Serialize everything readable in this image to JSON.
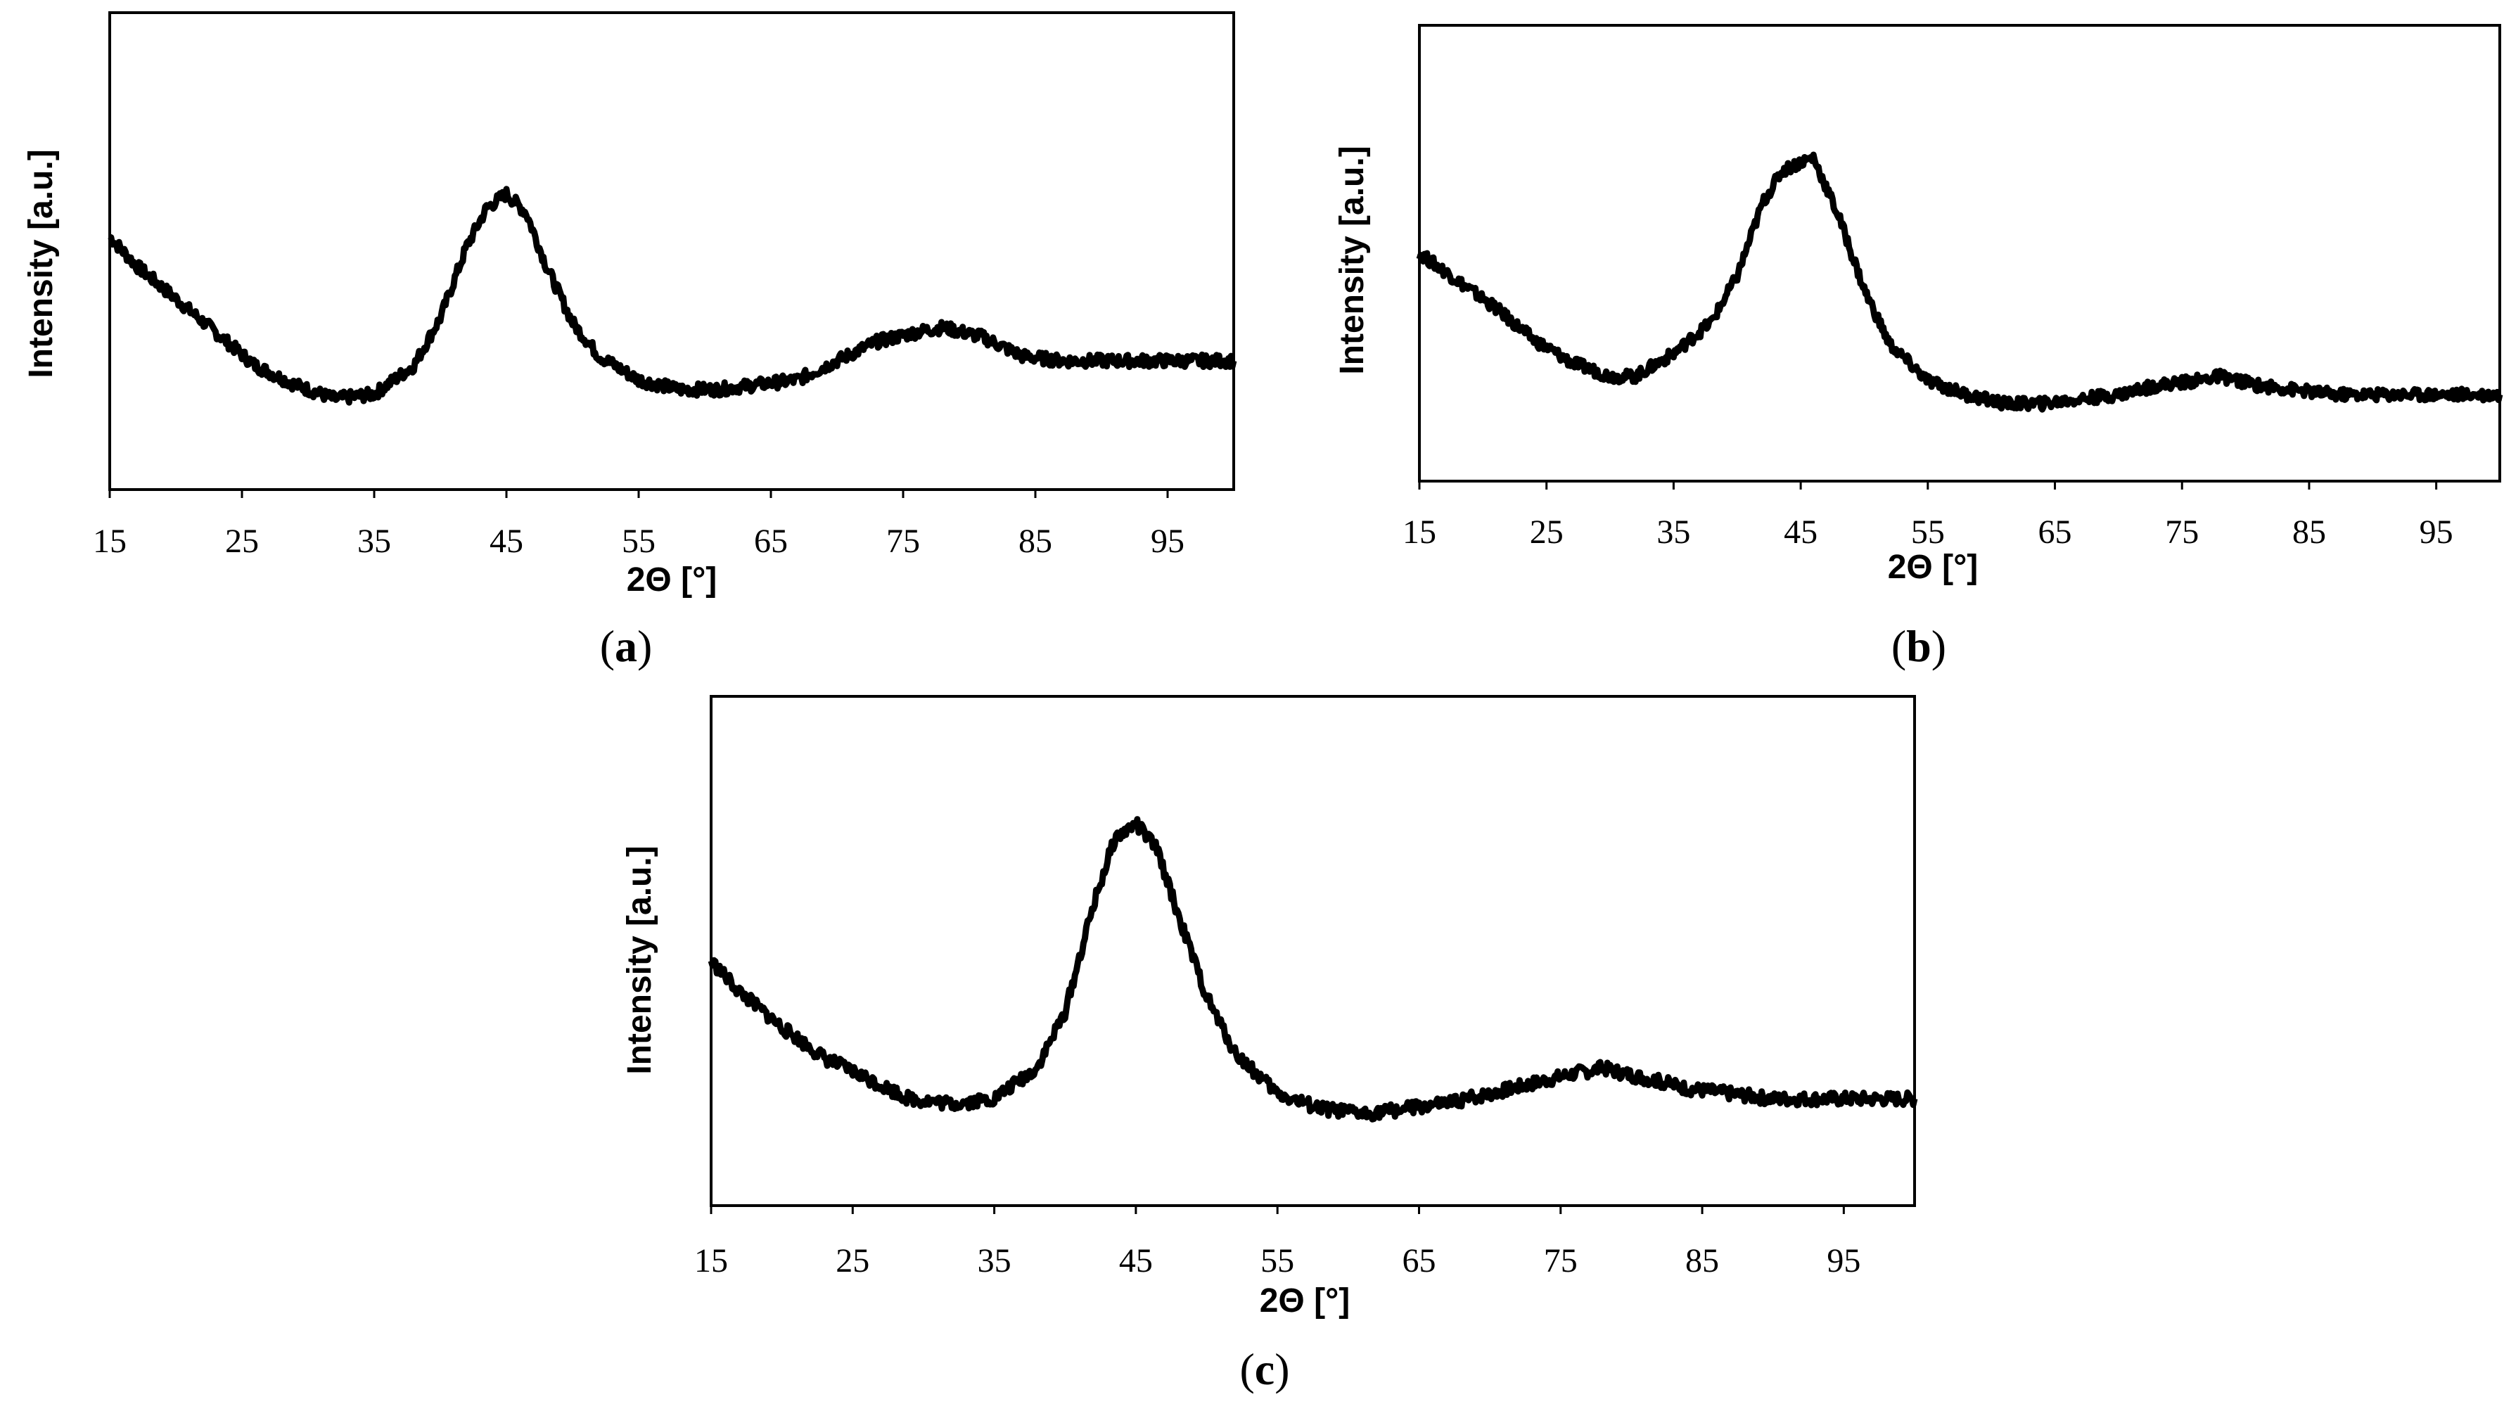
{
  "chart_data": [
    {
      "type": "line",
      "panel": "a",
      "caption_open": "(",
      "caption_letter": "a",
      "caption_close": ")",
      "xlabel": "2Θ [°]",
      "ylabel": "Intensity [a.u.]",
      "xlim": [
        15,
        100
      ],
      "ylim": [
        0,
        100
      ],
      "xticks": [
        15,
        25,
        35,
        45,
        55,
        65,
        75,
        85,
        95
      ],
      "x": [
        15,
        17,
        20,
        23,
        26,
        29,
        32,
        35,
        38,
        40,
        42,
        43.5,
        45,
        46.5,
        48,
        50,
        52,
        55,
        58,
        61,
        64,
        67,
        70,
        73,
        76,
        78,
        81,
        84,
        87,
        90,
        93,
        96,
        100
      ],
      "values": [
        53,
        47,
        40,
        33,
        26,
        22,
        19,
        20,
        26,
        36,
        51,
        59,
        62,
        58,
        47,
        35,
        28,
        23,
        21,
        21,
        22,
        23,
        27,
        31,
        33,
        34,
        32,
        28,
        27,
        27,
        27,
        27,
        27
      ]
    },
    {
      "type": "line",
      "panel": "b",
      "caption_open": "(",
      "caption_letter": "b",
      "caption_close": ")",
      "xlabel": "2Θ [°]",
      "ylabel": "Intensity [a.u.]",
      "xlim": [
        15,
        100
      ],
      "ylim": [
        0,
        100
      ],
      "xticks": [
        15,
        25,
        35,
        45,
        55,
        65,
        75,
        85,
        95
      ],
      "x": [
        15,
        18,
        21,
        24,
        27,
        30,
        32,
        35,
        38,
        40,
        42,
        43.5,
        45,
        46,
        48,
        50,
        52,
        55,
        58,
        61,
        64,
        67,
        70,
        73,
        76,
        78,
        81,
        84,
        87,
        90,
        93,
        96,
        100
      ],
      "values": [
        50,
        44,
        38,
        31,
        26,
        23,
        23,
        28,
        35,
        45,
        61,
        68,
        70,
        71,
        58,
        42,
        30,
        22,
        19,
        17,
        17,
        18,
        19,
        21,
        22,
        23,
        21,
        20,
        19,
        19,
        19,
        19,
        19
      ]
    },
    {
      "type": "line",
      "panel": "c",
      "caption_open": "(",
      "caption_letter": "c",
      "caption_close": ")",
      "xlabel": "2Θ [°]",
      "ylabel": "Intensity [a.u.]",
      "xlim": [
        15,
        100
      ],
      "ylim": [
        0,
        100
      ],
      "xticks": [
        15,
        25,
        35,
        45,
        55,
        65,
        75,
        85,
        95
      ],
      "x": [
        15,
        17,
        20,
        23,
        26,
        29,
        32,
        35,
        38,
        40,
        42,
        43.5,
        45,
        46.5,
        48,
        50,
        52,
        55,
        58,
        61,
        64,
        67,
        70,
        73,
        76,
        78,
        81,
        84,
        87,
        90,
        93,
        96,
        100
      ],
      "values": [
        48,
        42,
        35,
        29,
        25,
        21,
        20,
        21,
        27,
        38,
        59,
        72,
        75,
        70,
        57,
        41,
        30,
        22,
        19,
        18,
        19,
        20,
        22,
        24,
        26,
        27,
        25,
        23,
        22,
        21,
        21,
        21,
        21
      ]
    }
  ]
}
